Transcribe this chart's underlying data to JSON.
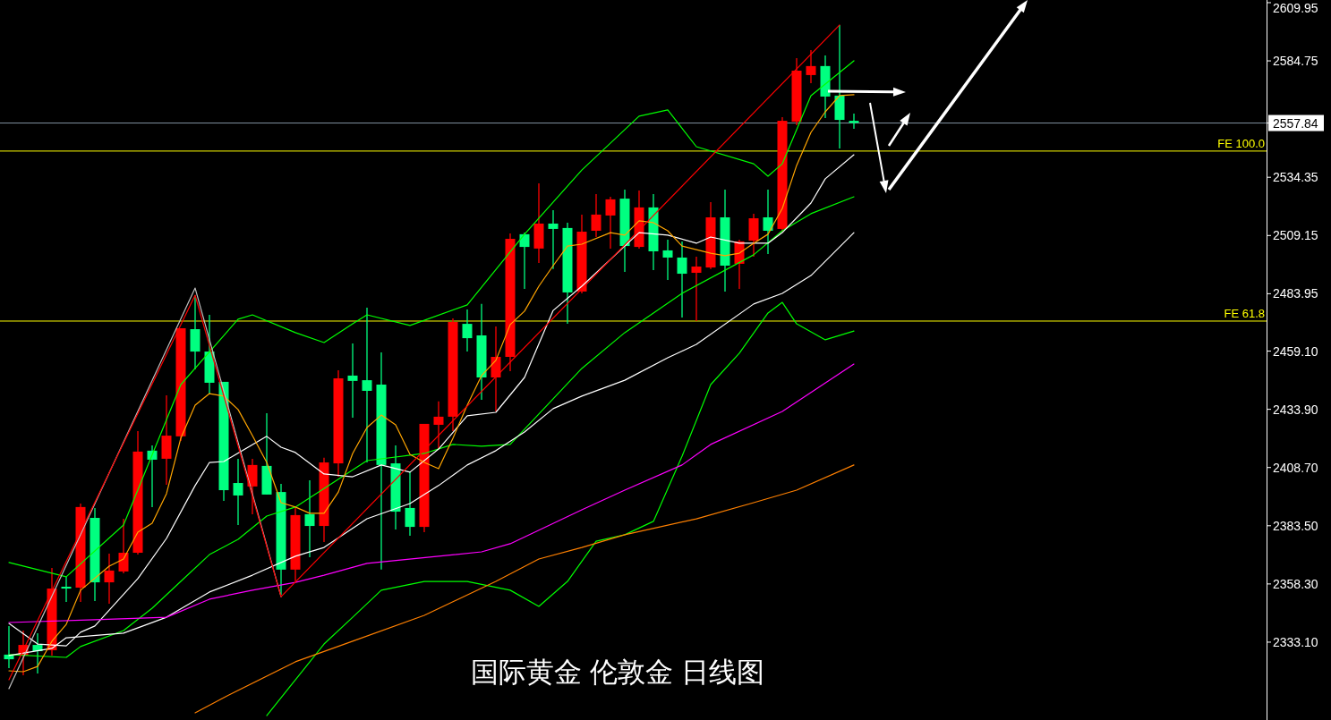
{
  "chart_data": {
    "type": "candlestick",
    "title": "国际黄金 伦敦金 日线图",
    "categories": [
      null,
      null,
      null,
      null,
      null,
      null,
      null,
      null,
      null,
      null,
      null,
      null,
      null,
      null,
      null,
      null,
      null,
      null,
      null,
      null,
      null,
      null,
      null,
      null,
      null,
      null,
      null,
      null,
      null,
      null,
      null,
      null,
      null,
      null,
      null,
      null,
      null,
      null,
      null,
      null,
      null,
      null,
      null,
      null,
      null,
      null,
      null,
      null,
      null,
      null,
      null,
      null,
      null,
      null,
      null,
      null,
      null,
      null,
      null,
      null
    ],
    "ohlc": [
      [
        2327.7,
        2340.1,
        2321.9,
        2325.7
      ],
      [
        2327.3,
        2338.1,
        2318.8,
        2331.9
      ],
      [
        2331.9,
        2337.0,
        2319.5,
        2329.2
      ],
      [
        2329.6,
        2365.2,
        2327.3,
        2356.3
      ],
      [
        2357.1,
        2361.4,
        2350.5,
        2356.3
      ],
      [
        2356.7,
        2393.1,
        2350.5,
        2391.6
      ],
      [
        2386.9,
        2391.2,
        2350.9,
        2359.0
      ],
      [
        2359.0,
        2371.4,
        2349.7,
        2364.1
      ],
      [
        2363.7,
        2386.5,
        2362.9,
        2371.8
      ],
      [
        2371.8,
        2424.5,
        2371.0,
        2415.6
      ],
      [
        2416.0,
        2418.3,
        2391.6,
        2412.1
      ],
      [
        2412.5,
        2440.0,
        2401.2,
        2422.5
      ],
      [
        2422.2,
        2469.0,
        2420.2,
        2469.0
      ],
      [
        2468.6,
        2483.3,
        2451.2,
        2458.9
      ],
      [
        2458.9,
        2474.8,
        2440.7,
        2445.4
      ],
      [
        2445.8,
        2445.8,
        2394.3,
        2398.9
      ],
      [
        2402.0,
        2412.5,
        2383.8,
        2396.6
      ],
      [
        2400.5,
        2412.5,
        2388.5,
        2409.8
      ],
      [
        2409.4,
        2432.2,
        2397.0,
        2397.0
      ],
      [
        2398.1,
        2401.6,
        2353.6,
        2364.5
      ],
      [
        2364.5,
        2391.2,
        2359.4,
        2388.1
      ],
      [
        2388.5,
        2403.2,
        2369.9,
        2383.4
      ],
      [
        2383.4,
        2412.9,
        2376.5,
        2410.9
      ],
      [
        2410.5,
        2450.8,
        2404.7,
        2447.3
      ],
      [
        2448.5,
        2462.4,
        2430.3,
        2446.2
      ],
      [
        2446.5,
        2477.9,
        2410.9,
        2441.9
      ],
      [
        2444.6,
        2458.5,
        2364.5,
        2409.8
      ],
      [
        2410.5,
        2418.3,
        2381.9,
        2389.6
      ],
      [
        2391.2,
        2407.0,
        2379.2,
        2383.0
      ],
      [
        2383.0,
        2427.6,
        2380.7,
        2427.6
      ],
      [
        2427.2,
        2437.3,
        2416.7,
        2430.7
      ],
      [
        2430.7,
        2473.3,
        2424.5,
        2471.7
      ],
      [
        2470.9,
        2477.1,
        2458.9,
        2464.7
      ],
      [
        2465.9,
        2479.5,
        2438.0,
        2447.7
      ],
      [
        2447.7,
        2469.8,
        2433.0,
        2456.6
      ],
      [
        2456.6,
        2510.0,
        2450.4,
        2507.7
      ],
      [
        2509.7,
        2510.4,
        2486.0,
        2504.2
      ],
      [
        2503.5,
        2531.7,
        2497.3,
        2514.3
      ],
      [
        2514.3,
        2520.1,
        2494.6,
        2512.0
      ],
      [
        2512.4,
        2514.7,
        2470.9,
        2484.5
      ],
      [
        2484.9,
        2518.2,
        2484.1,
        2510.8
      ],
      [
        2511.2,
        2527.1,
        2508.5,
        2518.2
      ],
      [
        2517.8,
        2525.9,
        2503.5,
        2524.8
      ],
      [
        2525.1,
        2529.0,
        2493.4,
        2504.6
      ],
      [
        2504.2,
        2528.6,
        2503.5,
        2521.3
      ],
      [
        2521.3,
        2527.1,
        2494.2,
        2502.3
      ],
      [
        2502.7,
        2507.3,
        2489.9,
        2499.6
      ],
      [
        2499.6,
        2506.6,
        2473.6,
        2492.6
      ],
      [
        2493.0,
        2500.0,
        2472.1,
        2495.7
      ],
      [
        2495.3,
        2523.6,
        2494.6,
        2517.0
      ],
      [
        2517.0,
        2529.0,
        2484.9,
        2496.1
      ],
      [
        2496.9,
        2507.3,
        2486.0,
        2506.6
      ],
      [
        2506.9,
        2518.6,
        2500.0,
        2516.6
      ],
      [
        2517.0,
        2529.0,
        2501.1,
        2511.2
      ],
      [
        2512.0,
        2560.4,
        2510.8,
        2558.8
      ],
      [
        2558.4,
        2585.9,
        2556.9,
        2580.5
      ],
      [
        2578.6,
        2589.4,
        2575.1,
        2582.5
      ],
      [
        2582.5,
        2587.1,
        2560.0,
        2569.3
      ],
      [
        2569.7,
        2600.3,
        2546.8,
        2559.2
      ],
      [
        2558.8,
        2561.9,
        2555.3,
        2557.84
      ]
    ],
    "colors": [
      "#00ff80",
      "#ff0000",
      "#00ff80",
      "#ff0000",
      "#00ff80",
      "#ff0000",
      "#00ff80",
      "#ff0000",
      "#ff0000",
      "#ff0000",
      "#00ff80",
      "#ff0000",
      "#ff0000",
      "#00ff80",
      "#00ff80",
      "#00ff80",
      "#00ff80",
      "#ff0000",
      "#00ff80",
      "#00ff80",
      "#ff0000",
      "#00ff80",
      "#ff0000",
      "#ff0000",
      "#00ff80",
      "#00ff80",
      "#00ff80",
      "#00ff80",
      "#00ff80",
      "#ff0000",
      "#ff0000",
      "#ff0000",
      "#00ff80",
      "#00ff80",
      "#ff0000",
      "#ff0000",
      "#00ff80",
      "#ff0000",
      "#00ff80",
      "#00ff80",
      "#ff0000",
      "#ff0000",
      "#ff0000",
      "#00ff80",
      "#ff0000",
      "#00ff80",
      "#00ff80",
      "#00ff80",
      "#ff0000",
      "#ff0000",
      "#00ff80",
      "#ff0000",
      "#ff0000",
      "#00ff80",
      "#ff0000",
      "#ff0000",
      "#ff0000",
      "#00ff80",
      "#00ff80",
      "#00ff80"
    ],
    "series": [
      {
        "type": "line",
        "color": "#00ff00",
        "values": [
          2367.6,
          null,
          null,
          null,
          2361.4,
          null,
          null,
          null,
          2383.8,
          null,
          null,
          null,
          2444.6,
          null,
          null,
          null,
          2472.9,
          2474.8,
          null,
          null,
          2467.1,
          null,
          2462.8,
          null,
          2470.9,
          2474.8,
          null,
          null,
          2470.2,
          null,
          null,
          null,
          2479.1,
          null,
          null,
          null,
          2509.7,
          null,
          null,
          null,
          2537.5,
          null,
          null,
          null,
          2560.8,
          null,
          2563.5,
          null,
          2547.6,
          null,
          null,
          null,
          2540.2,
          2534.8,
          2540.2,
          null,
          2569.7,
          null,
          null,
          2584.8
        ]
      },
      {
        "type": "line",
        "color": "#00ff00",
        "values": [
          null,
          null,
          null,
          null,
          null,
          null,
          null,
          null,
          null,
          null,
          null,
          null,
          null,
          null,
          null,
          null,
          null,
          null,
          2301.3,
          null,
          2316.8,
          null,
          2332.3,
          null,
          2343.9,
          null,
          2355.6,
          null,
          null,
          2359.4,
          null,
          null,
          2359.4,
          null,
          null,
          2355.6,
          null,
          2348.6,
          null,
          2359.4,
          null,
          2376.8,
          null,
          2379.6,
          null,
          2385.4,
          null,
          2413.6,
          null,
          2444.6,
          null,
          2458.2,
          null,
          2475.6,
          2480.2,
          2470.9,
          null,
          2464.0,
          null,
          2467.8
        ]
      },
      {
        "type": "line",
        "color": "#00ff00",
        "values": [
          2327.7,
          null,
          null,
          null,
          2326.5,
          2331.2,
          null,
          null,
          2338.1,
          null,
          2347.8,
          null,
          2359.4,
          null,
          2371.0,
          null,
          2377.6,
          null,
          2387.7,
          null,
          2391.6,
          null,
          null,
          null,
          null,
          2411.7,
          null,
          null,
          null,
          2414.8,
          null,
          2418.7,
          null,
          2417.9,
          null,
          2418.7,
          null,
          null,
          null,
          null,
          2451.6,
          null,
          null,
          2467.1,
          null,
          null,
          null,
          2484.1,
          null,
          null,
          null,
          null,
          2500.8,
          null,
          2511.2,
          null,
          2518.6,
          null,
          null,
          2525.9
        ]
      },
      {
        "type": "line",
        "color": "#ffffff",
        "values": [
          2341.2,
          null,
          2332.3,
          null,
          2331.5,
          2337.4,
          2340.1,
          null,
          null,
          2360.6,
          null,
          2378.0,
          null,
          2400.9,
          2410.9,
          2411.3,
          null,
          null,
          2422.2,
          2417.5,
          2415.2,
          null,
          2405.9,
          null,
          2404.7,
          null,
          2409.8,
          null,
          2406.7,
          null,
          2416.7,
          null,
          2431.1,
          null,
          2432.6,
          null,
          2447.7,
          null,
          2476.7,
          null,
          2487.2,
          null,
          null,
          null,
          2510.4,
          null,
          2509.3,
          null,
          2505.8,
          2508.5,
          null,
          2505.8,
          null,
          2505.8,
          2510.4,
          null,
          2523.2,
          2533.7,
          null,
          2544.1
        ]
      },
      {
        "type": "line",
        "color": "#ffffff",
        "values": [
          2327.3,
          null,
          null,
          2330.4,
          2335.0,
          null,
          null,
          null,
          2337.0,
          null,
          null,
          2343.9,
          null,
          null,
          2354.8,
          null,
          null,
          2362.1,
          null,
          null,
          2370.3,
          null,
          2374.1,
          null,
          null,
          2386.5,
          null,
          null,
          2393.1,
          null,
          2400.9,
          null,
          2409.8,
          null,
          2416.0,
          null,
          2424.1,
          null,
          2434.2,
          null,
          2439.6,
          null,
          null,
          2446.5,
          null,
          null,
          2456.2,
          null,
          2462.0,
          null,
          null,
          null,
          2479.5,
          null,
          2484.1,
          null,
          2491.8,
          null,
          null,
          2510.4
        ]
      },
      {
        "type": "line",
        "color": "#ffa500",
        "values": [
          2320.7,
          2320.3,
          2322.6,
          2333.5,
          2340.8,
          2355.6,
          null,
          2366.0,
          2369.1,
          2380.7,
          2384.6,
          2397.4,
          2421.4,
          2435.7,
          2440.7,
          2439.6,
          2433.8,
          2422.5,
          2410.9,
          2393.5,
          2391.6,
          2388.9,
          2388.9,
          2398.1,
          2414.8,
          2426.0,
          2431.4,
          2427.2,
          2414.4,
          2410.9,
          2408.2,
          2421.4,
          2435.7,
          2448.5,
          2455.1,
          2470.6,
          2476.4,
          2487.2,
          2496.1,
          2504.6,
          2505.4,
          null,
          2510.4,
          2509.3,
          2515.5,
          2514.7,
          2511.2,
          2504.6,
          null,
          2501.5,
          2500.4,
          2501.5,
          2505.8,
          2509.7,
          2520.9,
          2539.5,
          2553.8,
          2562.7,
          2569.7,
          2570.1
        ]
      },
      {
        "type": "line",
        "color": "#ff00ff",
        "values": [
          2341.6,
          null,
          null,
          null,
          null,
          null,
          2342.8,
          null,
          null,
          null,
          null,
          2343.9,
          null,
          null,
          2351.7,
          null,
          null,
          2355.6,
          null,
          null,
          2359.0,
          null,
          2362.1,
          null,
          null,
          2367.2,
          null,
          null,
          null,
          null,
          2370.3,
          null,
          null,
          2372.2,
          null,
          2375.7,
          null,
          null,
          null,
          null,
          2390.4,
          null,
          null,
          2398.9,
          null,
          null,
          null,
          2409.8,
          null,
          2418.7,
          null,
          null,
          null,
          null,
          2433.0,
          null,
          null,
          null,
          null,
          2453.5
        ]
      },
      {
        "type": "line",
        "color": "#ff8000",
        "values": [
          null,
          null,
          null,
          null,
          null,
          null,
          null,
          null,
          null,
          null,
          null,
          null,
          null,
          2302.5,
          null,
          2309.1,
          null,
          null,
          null,
          null,
          2324.6,
          null,
          null,
          null,
          2333.5,
          null,
          null,
          null,
          null,
          2344.7,
          null,
          null,
          null,
          null,
          2359.4,
          null,
          null,
          2369.1,
          null,
          null,
          2374.1,
          null,
          null,
          2379.6,
          null,
          null,
          null,
          null,
          2386.5,
          null,
          null,
          null,
          2393.5,
          null,
          null,
          2398.9,
          null,
          null,
          null,
          2409.8
        ]
      },
      {
        "type": "line",
        "color": "#c0c0c0",
        "values": [
          2313.0,
          null,
          null,
          null,
          null,
          null,
          null,
          null,
          null,
          null,
          null,
          null,
          null,
          2486.4,
          null,
          null,
          null,
          null,
          null,
          2352.8,
          null,
          null,
          null,
          null,
          null,
          null,
          null,
          null,
          null,
          null,
          null,
          null,
          null,
          null,
          null,
          null,
          null,
          null,
          null,
          null,
          null,
          null,
          null,
          null,
          null,
          null,
          null,
          null,
          null,
          null,
          null,
          null,
          null,
          null,
          null,
          null,
          null,
          null,
          null,
          null
        ]
      },
      {
        "type": "line",
        "color": "#ff0000",
        "values": [
          2316.8,
          null,
          null,
          null,
          null,
          null,
          null,
          null,
          null,
          null,
          null,
          null,
          null,
          2483.3,
          null,
          null,
          null,
          null,
          null,
          2352.8,
          null,
          null,
          null,
          null,
          null,
          null,
          null,
          null,
          null,
          null,
          null,
          null,
          null,
          null,
          null,
          null,
          null,
          null,
          null,
          null,
          null,
          null,
          null,
          null,
          null,
          null,
          null,
          null,
          null,
          null,
          null,
          null,
          null,
          null,
          null,
          null,
          null,
          null,
          2600.3,
          null
        ]
      }
    ],
    "ylim": [
      2299.4,
      2611.1
    ],
    "yticks": [
      2609.95,
      2584.75,
      2557.84,
      2534.35,
      2509.15,
      2483.95,
      {
        "value": 2459.1,
        "label": "2459.10"
      },
      {
        "value": 2433.9,
        "label": "2433.90"
      },
      {
        "value": 2408.7,
        "label": "2408.70"
      },
      {
        "value": 2383.5,
        "label": "2383.50"
      },
      {
        "value": 2358.3,
        "label": "2358.30"
      },
      {
        "value": 2333.1,
        "label": "2333.10"
      }
    ],
    "ref_lines": [
      {
        "axis": "y",
        "value": 2557.84,
        "color": "#8090a0"
      },
      {
        "axis": "y",
        "value": 2545.7,
        "label": "FE 100.0",
        "color": "#ffff00"
      },
      {
        "axis": "y",
        "value": 2472.1,
        "label": "FE 61.8",
        "color": "#ffff00"
      }
    ]
  }
}
